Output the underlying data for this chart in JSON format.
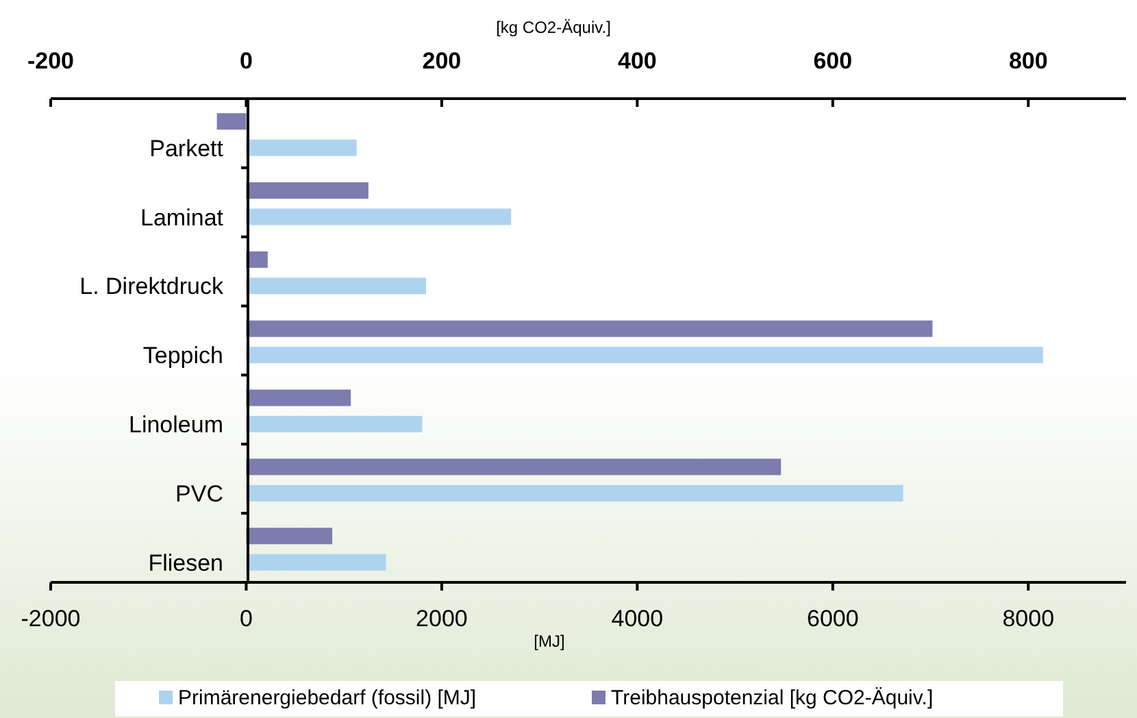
{
  "chart_data": {
    "type": "bar",
    "orientation": "horizontal",
    "xlabel": "[MJ]",
    "x2label": "[kg CO2-Äquiv.]",
    "categories": [
      "Parkett",
      "Laminat",
      "L. Direktdruck",
      "Teppich",
      "Linoleum",
      "PVC",
      "Fliesen"
    ],
    "series": [
      {
        "name": "Primärenergiebedarf (fossil) [MJ]",
        "color": "#aed3ee",
        "values": [
          1130,
          2710,
          1840,
          8150,
          1800,
          6720,
          1430
        ]
      },
      {
        "name": "Treibhauspotenzial [kg CO2-Äquiv.]",
        "color": "#7c7cae",
        "axis": "x2",
        "values": [
          -30,
          125,
          22,
          702,
          107,
          547,
          88
        ]
      }
    ],
    "xlim": [
      -2000,
      9000
    ],
    "xticks": [
      -2000,
      0,
      2000,
      4000,
      6000,
      8000
    ],
    "x2lim": [
      -200,
      900
    ],
    "x2ticks": [
      -200,
      0,
      200,
      400,
      600,
      800
    ],
    "grid": false,
    "legend": "bottom"
  }
}
